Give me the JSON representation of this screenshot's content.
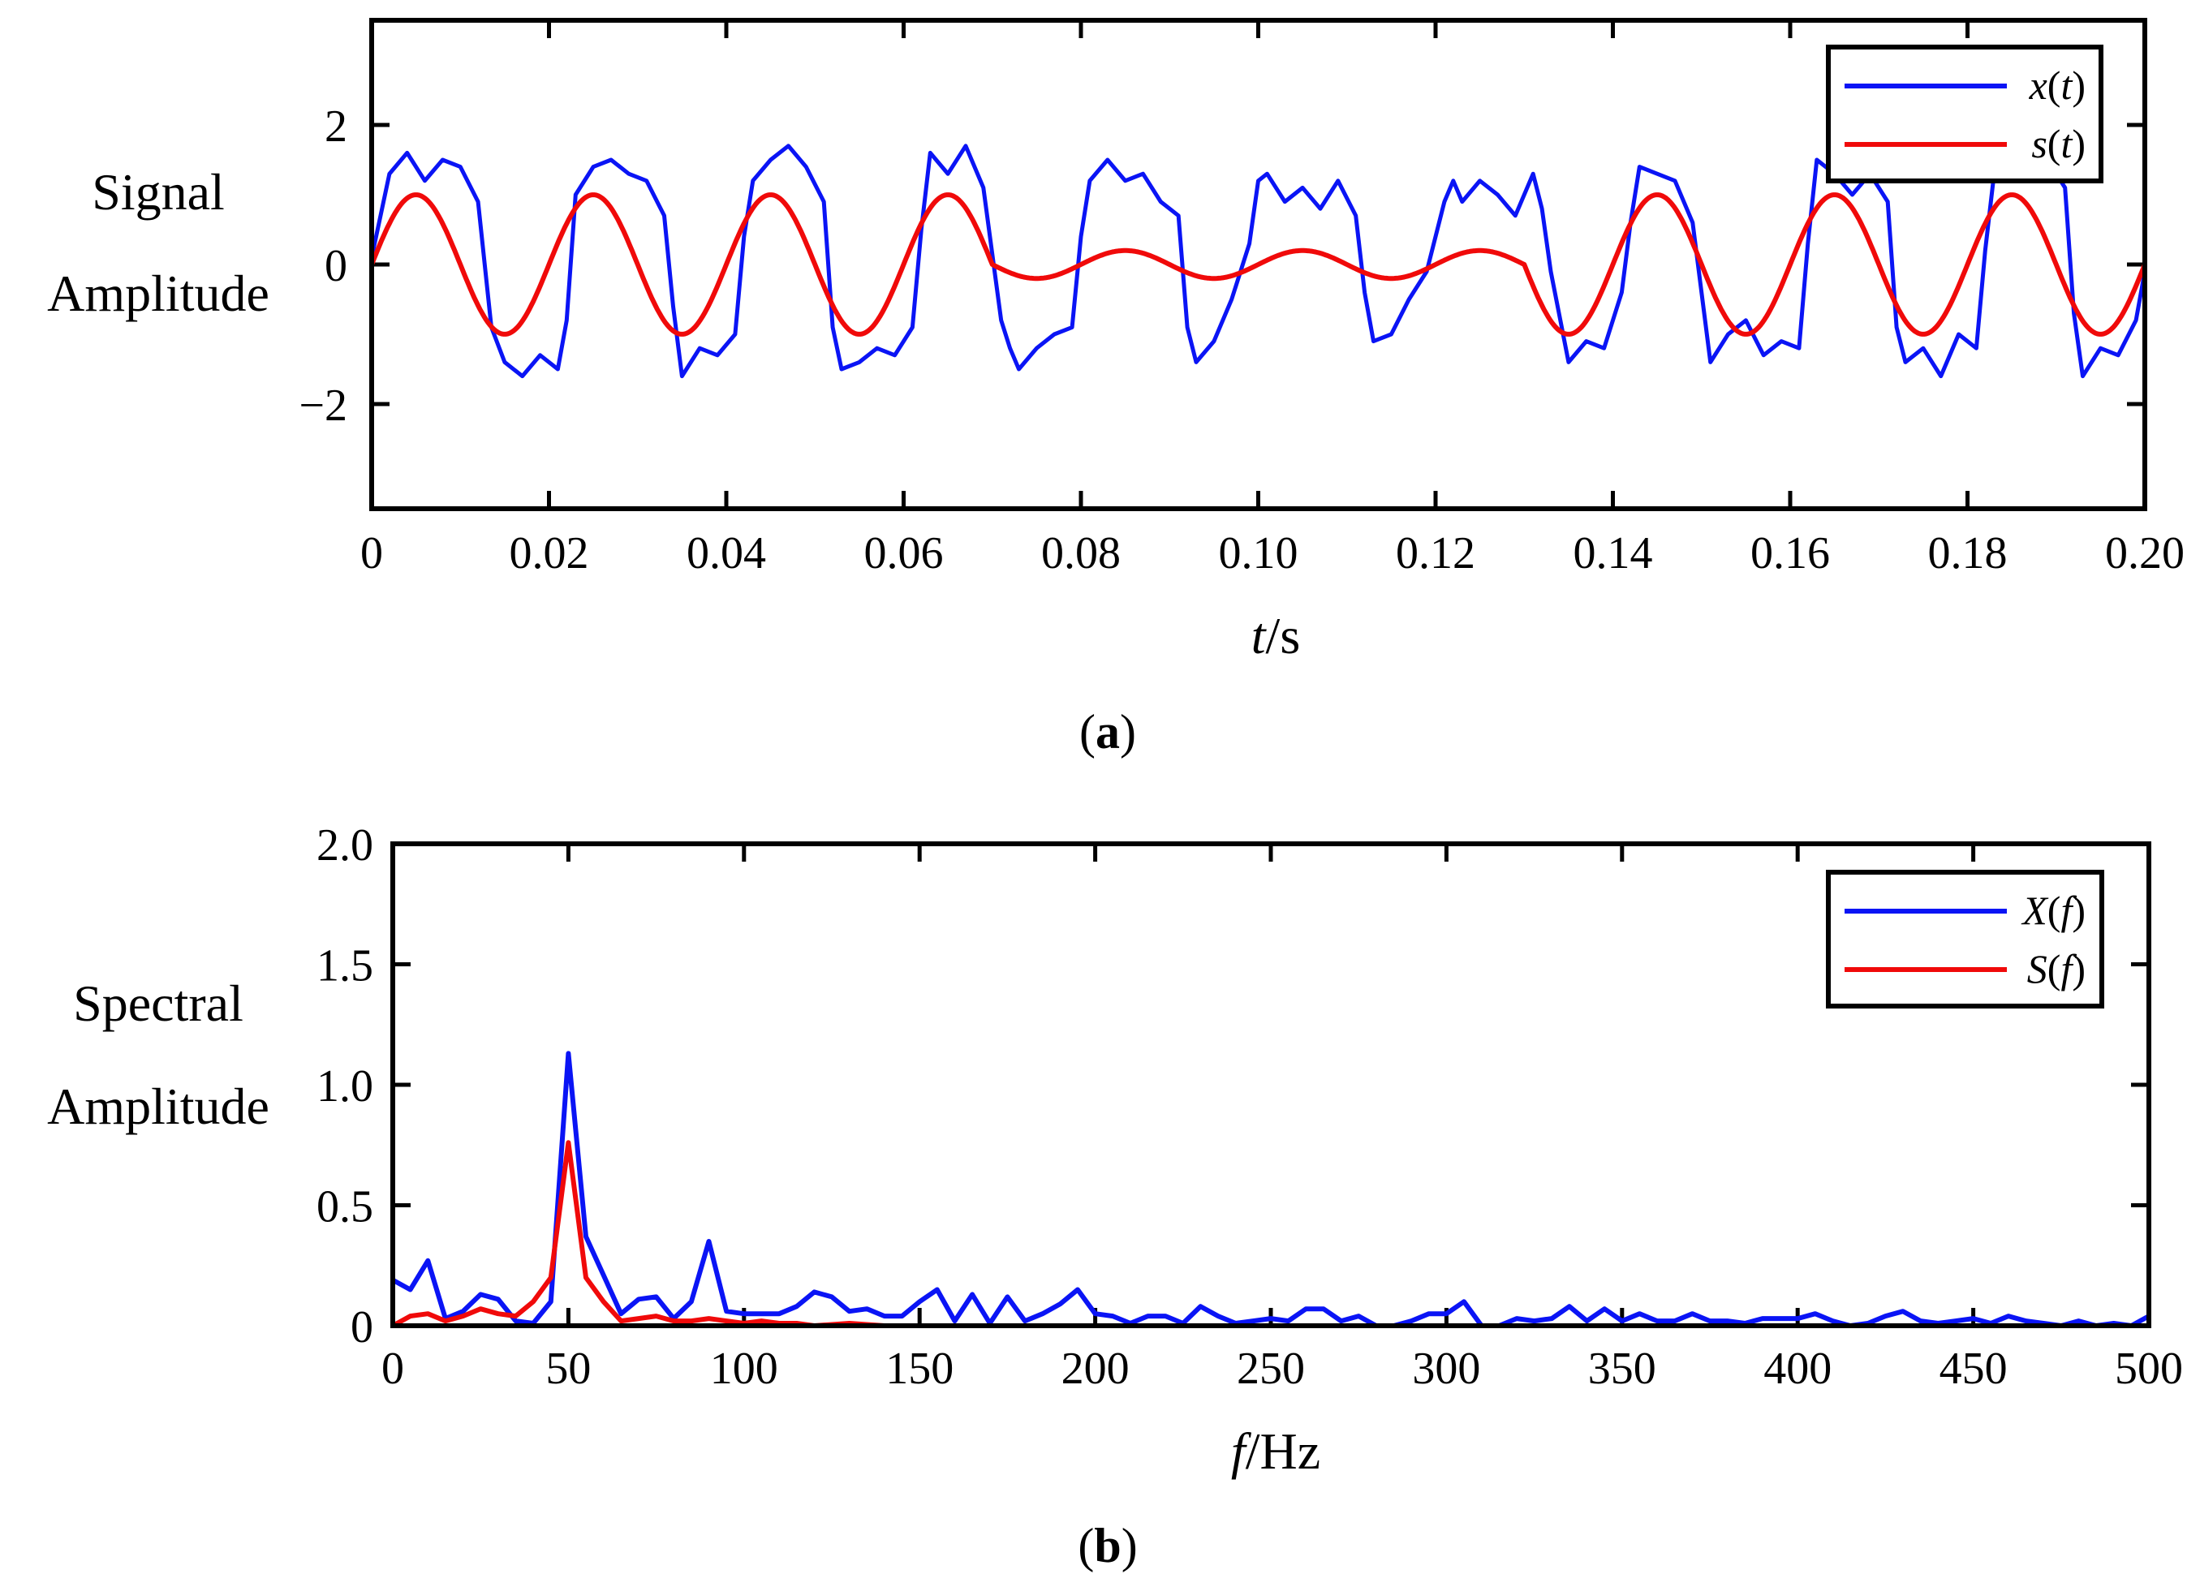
{
  "colors": {
    "x_series": "#0a14f5",
    "s_series": "#f00a0a",
    "axis": "#000000",
    "background": "#ffffff"
  },
  "chart_data": [
    {
      "id": "a",
      "type": "line",
      "panel_label": "a",
      "xlabel_italic": "t",
      "xlabel_unit": "/s",
      "ylabel_line1": "Signal",
      "ylabel_line2": "Amplitude",
      "xlim": [
        0,
        0.2
      ],
      "ylim": [
        -3.5,
        3.5
      ],
      "xticks": [
        0,
        0.02,
        0.04,
        0.06,
        0.08,
        0.1,
        0.12,
        0.14,
        0.16,
        0.18,
        0.2
      ],
      "xtick_labels": [
        "0",
        "0.02",
        "0.04",
        "0.06",
        "0.08",
        "0.10",
        "0.12",
        "0.14",
        "0.16",
        "0.18",
        "0.20"
      ],
      "yticks": [
        -2,
        0,
        2
      ],
      "ytick_labels": [
        "−2",
        "0",
        "2"
      ],
      "legend_position": "top-right",
      "series": [
        {
          "name": "x(t)",
          "legend_italic": "x",
          "legend_arg": "t",
          "color": "#0a14f5",
          "description": "noisy square-like wave",
          "x": [
            0,
            0.002,
            0.004,
            0.006,
            0.008,
            0.01,
            0.012,
            0.0135,
            0.015,
            0.017,
            0.019,
            0.021,
            0.022,
            0.023,
            0.025,
            0.027,
            0.029,
            0.031,
            0.033,
            0.034,
            0.035,
            0.037,
            0.039,
            0.041,
            0.042,
            0.043,
            0.045,
            0.047,
            0.049,
            0.051,
            0.052,
            0.053,
            0.055,
            0.057,
            0.059,
            0.061,
            0.062,
            0.063,
            0.065,
            0.067,
            0.069,
            0.071,
            0.072,
            0.073,
            0.075,
            0.077,
            0.079,
            0.08,
            0.081,
            0.083,
            0.085,
            0.087,
            0.089,
            0.091,
            0.092,
            0.093,
            0.095,
            0.097,
            0.099,
            0.1,
            0.101,
            0.103,
            0.105,
            0.107,
            0.109,
            0.111,
            0.112,
            0.113,
            0.115,
            0.117,
            0.119,
            0.121,
            0.122,
            0.123,
            0.125,
            0.127,
            0.129,
            0.131,
            0.132,
            0.133,
            0.135,
            0.137,
            0.139,
            0.141,
            0.142,
            0.143,
            0.145,
            0.147,
            0.149,
            0.151,
            0.152,
            0.153,
            0.155,
            0.157,
            0.159,
            0.161,
            0.162,
            0.163,
            0.165,
            0.167,
            0.169,
            0.171,
            0.172,
            0.173,
            0.175,
            0.177,
            0.179,
            0.181,
            0.182,
            0.183,
            0.185,
            0.187,
            0.189,
            0.191,
            0.192,
            0.193,
            0.195,
            0.197,
            0.199,
            0.2
          ],
          "y": [
            0.1,
            1.3,
            1.6,
            1.2,
            1.5,
            1.4,
            0.9,
            -0.9,
            -1.4,
            -1.6,
            -1.3,
            -1.5,
            -0.8,
            1.0,
            1.4,
            1.5,
            1.3,
            1.2,
            0.7,
            -0.6,
            -1.6,
            -1.2,
            -1.3,
            -1.0,
            0.4,
            1.2,
            1.5,
            1.7,
            1.4,
            0.9,
            -0.9,
            -1.5,
            -1.4,
            -1.2,
            -1.3,
            -0.9,
            0.5,
            1.6,
            1.3,
            1.7,
            1.1,
            -0.8,
            -1.2,
            -1.5,
            -1.2,
            -1.0,
            -0.9,
            0.4,
            1.2,
            1.5,
            1.2,
            1.3,
            0.9,
            0.7,
            -0.9,
            -1.4,
            -1.1,
            -0.5,
            0.3,
            1.2,
            1.3,
            0.9,
            1.1,
            0.8,
            1.2,
            0.7,
            -0.4,
            -1.1,
            -1.0,
            -0.5,
            -0.1,
            0.9,
            1.2,
            0.9,
            1.2,
            1.0,
            0.7,
            1.3,
            0.8,
            -0.1,
            -1.4,
            -1.1,
            -1.2,
            -0.4,
            0.6,
            1.4,
            1.3,
            1.2,
            0.6,
            -1.4,
            -1.2,
            -1.0,
            -0.8,
            -1.3,
            -1.1,
            -1.2,
            0.3,
            1.5,
            1.3,
            1.0,
            1.3,
            0.9,
            -0.9,
            -1.4,
            -1.2,
            -1.6,
            -1.0,
            -1.2,
            0.2,
            1.3,
            1.4,
            1.2,
            1.5,
            1.1,
            -0.7,
            -1.6,
            -1.2,
            -1.3,
            -0.8,
            -0.1
          ]
        },
        {
          "name": "s(t)",
          "legend_italic": "s",
          "legend_arg": "t",
          "color": "#f00a0a",
          "description": "50 Hz sine of amplitude 1, attenuated to amplitude 0.2 between 0.07 s and 0.13 s",
          "frequency": 50,
          "amplitude": 1.0,
          "attenuated_interval": [
            0.07,
            0.13
          ],
          "attenuated_amplitude": 0.2
        }
      ]
    },
    {
      "id": "b",
      "type": "line",
      "panel_label": "b",
      "xlabel_italic": "f",
      "xlabel_unit": "/Hz",
      "ylabel_line1": "Spectral",
      "ylabel_line2": "Amplitude",
      "xlim": [
        0,
        500
      ],
      "ylim": [
        0,
        2
      ],
      "xticks": [
        0,
        50,
        100,
        150,
        200,
        250,
        300,
        350,
        400,
        450,
        500
      ],
      "xtick_labels": [
        "0",
        "50",
        "100",
        "150",
        "200",
        "250",
        "300",
        "350",
        "400",
        "450",
        "500"
      ],
      "yticks": [
        0,
        0.5,
        1.0,
        1.5,
        2.0
      ],
      "ytick_labels": [
        "0",
        "0.5",
        "1.0",
        "1.5",
        "2.0"
      ],
      "legend_position": "top-right",
      "series": [
        {
          "name": "X(f)",
          "legend_italic": "X",
          "legend_arg": "f",
          "color": "#0a14f5",
          "x": [
            0,
            5,
            10,
            15,
            20,
            25,
            30,
            35,
            40,
            45,
            50,
            55,
            60,
            65,
            70,
            75,
            80,
            85,
            90,
            95,
            100,
            105,
            110,
            115,
            120,
            125,
            130,
            135,
            140,
            145,
            150,
            155,
            160,
            165,
            170,
            175,
            180,
            185,
            190,
            195,
            200,
            205,
            210,
            215,
            220,
            225,
            230,
            235,
            240,
            245,
            250,
            255,
            260,
            265,
            270,
            275,
            280,
            285,
            290,
            295,
            300,
            305,
            310,
            315,
            320,
            325,
            330,
            335,
            340,
            345,
            350,
            355,
            360,
            365,
            370,
            375,
            380,
            385,
            390,
            395,
            400,
            405,
            410,
            415,
            420,
            425,
            430,
            435,
            440,
            445,
            450,
            455,
            460,
            465,
            470,
            475,
            480,
            485,
            490,
            495,
            500
          ],
          "y": [
            0.19,
            0.15,
            0.27,
            0.03,
            0.06,
            0.13,
            0.11,
            0.02,
            0.01,
            0.1,
            1.13,
            0.37,
            0.21,
            0.05,
            0.11,
            0.12,
            0.03,
            0.1,
            0.35,
            0.06,
            0.05,
            0.05,
            0.05,
            0.08,
            0.14,
            0.12,
            0.06,
            0.07,
            0.04,
            0.04,
            0.1,
            0.15,
            0.02,
            0.13,
            0.01,
            0.12,
            0.02,
            0.05,
            0.09,
            0.15,
            0.05,
            0.04,
            0.01,
            0.04,
            0.04,
            0.01,
            0.08,
            0.04,
            0.01,
            0.02,
            0.03,
            0.02,
            0.07,
            0.07,
            0.02,
            0.04,
            0.0,
            0.0,
            0.02,
            0.05,
            0.05,
            0.1,
            0.0,
            0.0,
            0.03,
            0.02,
            0.03,
            0.08,
            0.02,
            0.07,
            0.02,
            0.05,
            0.02,
            0.02,
            0.05,
            0.02,
            0.02,
            0.01,
            0.03,
            0.03,
            0.03,
            0.05,
            0.02,
            0.0,
            0.01,
            0.04,
            0.06,
            0.02,
            0.01,
            0.02,
            0.03,
            0.01,
            0.04,
            0.02,
            0.01,
            0.0,
            0.02,
            0.0,
            0.01,
            0.0,
            0.04
          ]
        },
        {
          "name": "S(f)",
          "legend_italic": "S",
          "legend_arg": "f",
          "color": "#f00a0a",
          "x": [
            0,
            5,
            10,
            15,
            20,
            25,
            30,
            35,
            40,
            45,
            50,
            55,
            60,
            65,
            70,
            75,
            80,
            85,
            90,
            95,
            100,
            105,
            110,
            115,
            120,
            130,
            140,
            150,
            200,
            250,
            300,
            350,
            400,
            450,
            500
          ],
          "y": [
            0.0,
            0.04,
            0.05,
            0.02,
            0.04,
            0.07,
            0.05,
            0.04,
            0.1,
            0.2,
            0.76,
            0.2,
            0.1,
            0.02,
            0.03,
            0.04,
            0.02,
            0.02,
            0.03,
            0.02,
            0.01,
            0.02,
            0.01,
            0.01,
            0.0,
            0.01,
            0.0,
            0.0,
            0.0,
            0.0,
            0.0,
            0.0,
            0.0,
            0.0,
            0.0
          ]
        }
      ]
    }
  ]
}
